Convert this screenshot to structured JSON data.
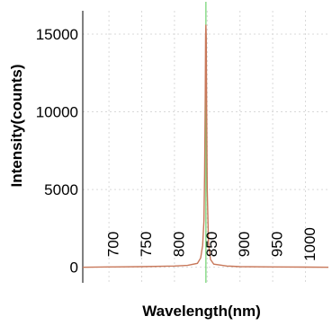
{
  "chart_data": {
    "type": "line",
    "title": "",
    "xlabel": "Wavelength(nm)",
    "ylabel": "Intensity(counts)",
    "xlim": [
      660,
      1035
    ],
    "ylim": [
      -1000,
      16500
    ],
    "x_ticks": [
      700,
      750,
      800,
      850,
      900,
      950,
      1000
    ],
    "y_ticks": [
      0,
      5000,
      10000,
      15000
    ],
    "grid": true,
    "legend": "none",
    "marker_line": {
      "x": 848,
      "color": "#6fd36f"
    },
    "series": [
      {
        "color": "#c8785a",
        "x": [
          660,
          700,
          750,
          800,
          820,
          835,
          840,
          843,
          845,
          846,
          847,
          847.5,
          848,
          848.5,
          849,
          850,
          852,
          855,
          860,
          880,
          900,
          950,
          1000,
          1035
        ],
        "y": [
          0,
          20,
          40,
          80,
          120,
          250,
          600,
          1400,
          3000,
          6000,
          11000,
          14800,
          15600,
          14800,
          11000,
          5000,
          1500,
          500,
          200,
          80,
          40,
          20,
          10,
          0
        ]
      }
    ]
  }
}
